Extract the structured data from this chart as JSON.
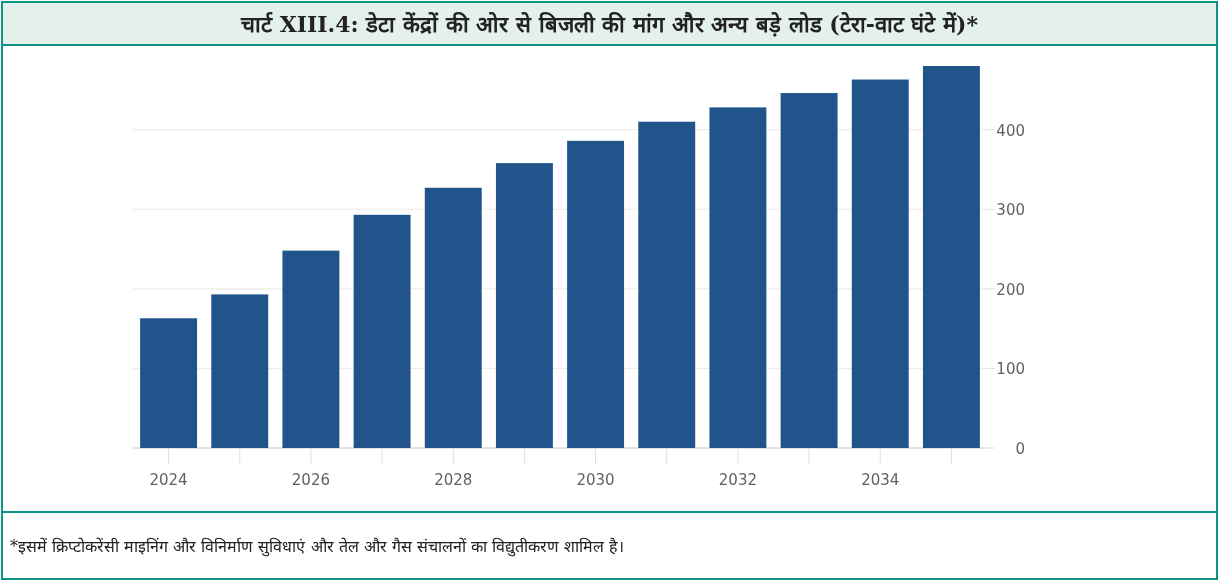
{
  "chart_data": {
    "type": "bar",
    "title": "चार्ट XIII.4: डेटा केंद्रों की ओर से बिजली की मांग और अन्य बड़े लोड (टेरा-वाट घंटे में)*",
    "categories": [
      "2024",
      null,
      "2026",
      null,
      "2028",
      null,
      "2030",
      null,
      "2032",
      null,
      "2034",
      null
    ],
    "values": [
      163,
      193,
      248,
      293,
      327,
      358,
      386,
      410,
      428,
      446,
      463,
      480
    ],
    "color": "#20548a",
    "ylim": [
      0,
      480
    ],
    "yticks": [
      0,
      100,
      200,
      300,
      400
    ],
    "grid": "y",
    "annotations": [
      "*इसमें क्रिप्टोकरेंसी माइनिंग और विनिर्माण सुविधाएं और तेल और गैस संचालनों का विद्युतीकरण शामिल है।"
    ]
  }
}
